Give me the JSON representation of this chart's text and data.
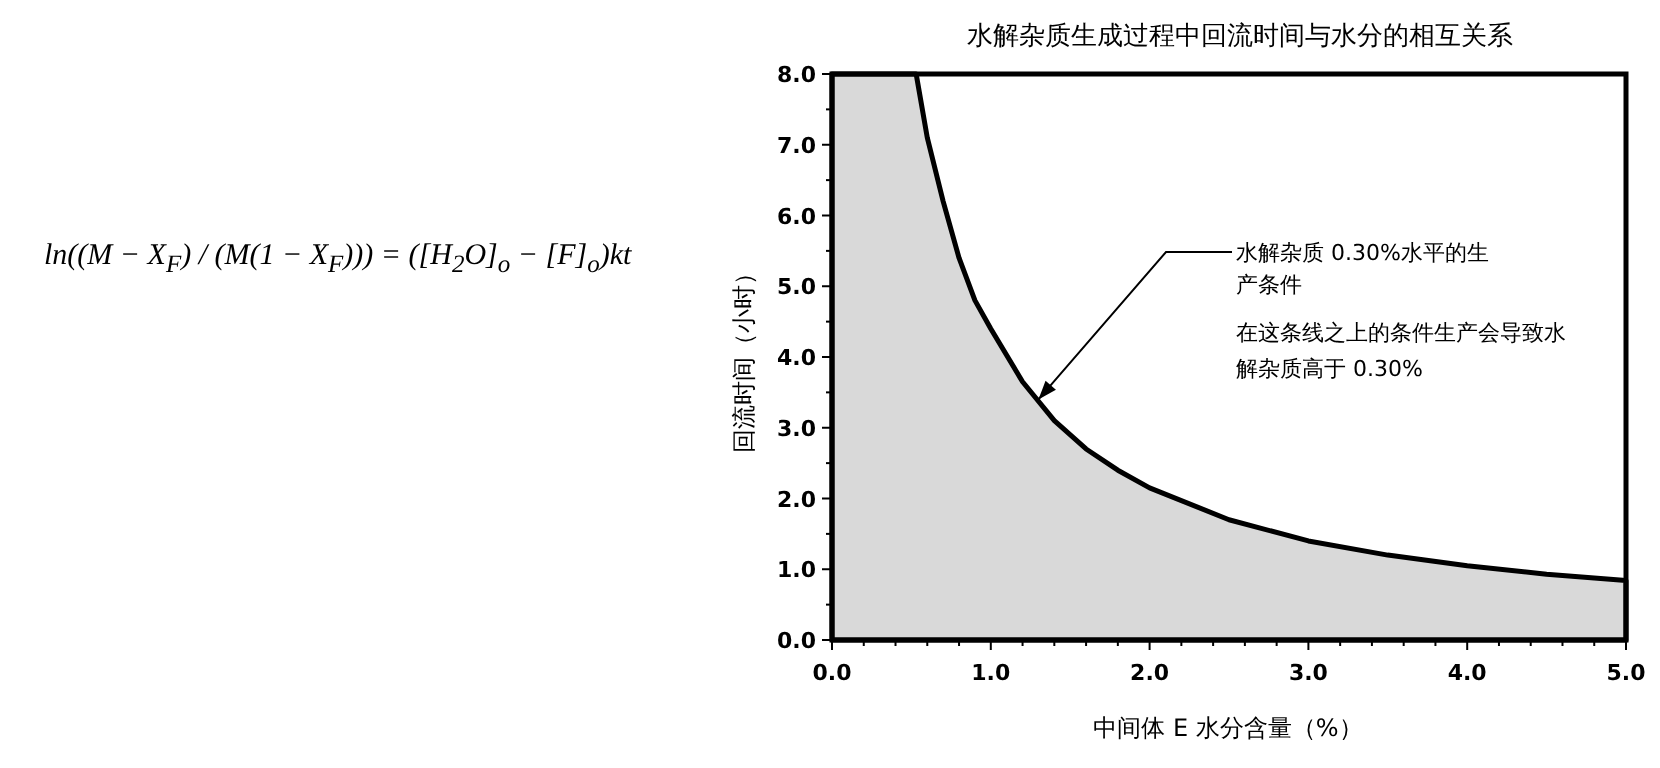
{
  "chart_data": {
    "type": "area",
    "title": "水解杂质生成过程中回流时间与水分的相互关系",
    "xlabel": "中间体 E 水分含量（%）",
    "ylabel": "回流时间（小时）",
    "x": [
      0,
      0.53,
      0.6,
      0.7,
      0.8,
      0.9,
      1.0,
      1.2,
      1.4,
      1.6,
      1.8,
      2.0,
      2.5,
      3.0,
      3.5,
      4.0,
      4.5,
      5.0
    ],
    "series": [
      {
        "type": "area",
        "color": "#d9d9d9",
        "values": [
          8.0,
          8.0,
          7.1,
          6.2,
          5.4,
          4.8,
          4.4,
          3.65,
          3.1,
          2.7,
          2.4,
          2.15,
          1.7,
          1.4,
          1.2,
          1.05,
          0.93,
          0.84
        ]
      }
    ],
    "xlim": [
      0,
      5
    ],
    "ylim": [
      0,
      8
    ],
    "xticks": [
      {
        "value": 0,
        "label": "0.0"
      },
      {
        "value": 1,
        "label": "1.0"
      },
      {
        "value": 2,
        "label": "2.0"
      },
      {
        "value": 3,
        "label": "3.0"
      },
      {
        "value": 4,
        "label": "4.0"
      },
      {
        "value": 5,
        "label": "5.0"
      }
    ],
    "yticks": [
      {
        "value": 0,
        "label": "0.0"
      },
      {
        "value": 1,
        "label": "1.0"
      },
      {
        "value": 2,
        "label": "2.0"
      },
      {
        "value": 3,
        "label": "3.0"
      },
      {
        "value": 4,
        "label": "4.0"
      },
      {
        "value": 5,
        "label": "5.0"
      },
      {
        "value": 6,
        "label": "6.0"
      },
      {
        "value": 7,
        "label": "7.0"
      },
      {
        "value": 8,
        "label": "8.0"
      }
    ],
    "grid": false,
    "legend": false,
    "annotations": [
      {
        "text": "水解杂质 0.30%水平的生产条件",
        "x": 1.3,
        "y": 3.4
      },
      "在这条线之上的条件生产会导致水解杂质高于 0.30%",
      "ln((M − X$_{F}$) / (M(1 − X$_{F}$))) = ([H$_{2}$O]$_{o}$ − [F]$_{o}$)kt"
    ]
  }
}
